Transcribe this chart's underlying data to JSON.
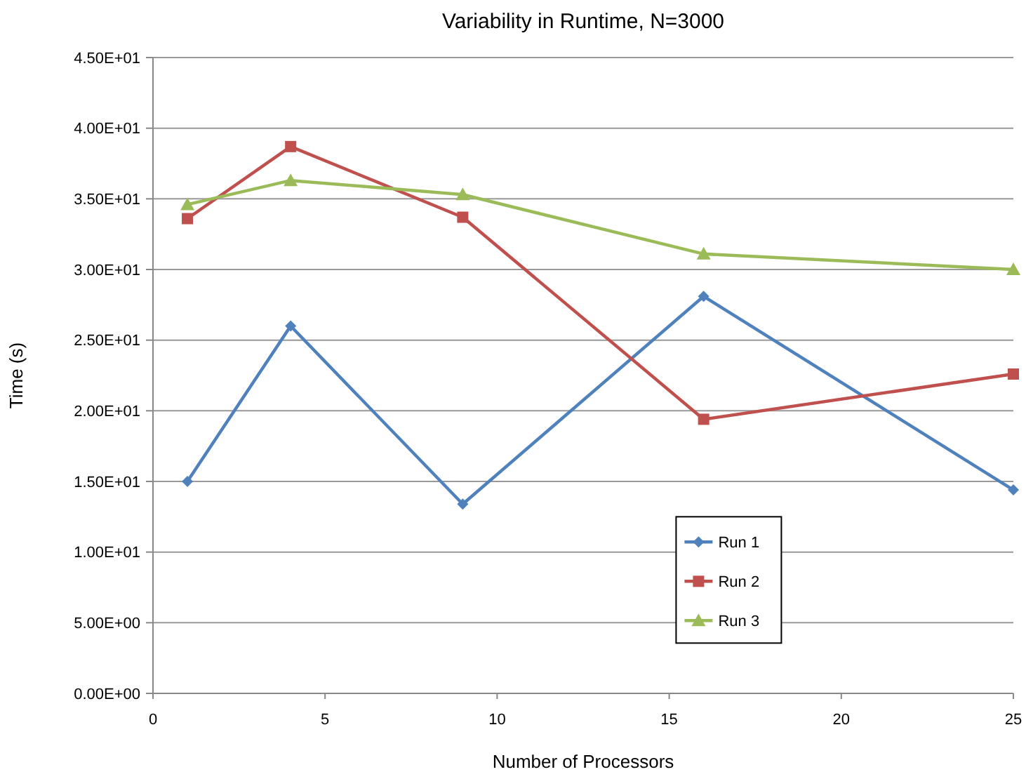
{
  "chart_data": {
    "type": "line",
    "title": "Variability in Runtime, N=3000",
    "xlabel": "Number of Processors",
    "ylabel": "Time (s)",
    "x": [
      1,
      4,
      9,
      16,
      25
    ],
    "series": [
      {
        "name": "Run 1",
        "color": "#4f81bd",
        "marker": "diamond",
        "values": [
          15.0,
          26.0,
          13.4,
          28.1,
          14.4
        ]
      },
      {
        "name": "Run 2",
        "color": "#c0504d",
        "marker": "square",
        "values": [
          33.6,
          38.7,
          33.7,
          19.4,
          22.6
        ]
      },
      {
        "name": "Run 3",
        "color": "#9bbb59",
        "marker": "triangle",
        "values": [
          34.6,
          36.3,
          35.3,
          31.1,
          30.0
        ]
      }
    ],
    "xlim": [
      0,
      25
    ],
    "xticks": [
      0,
      5,
      10,
      15,
      20,
      25
    ],
    "ylim": [
      0,
      45
    ],
    "yticks": [
      {
        "value": 0,
        "label": "0.00E+00"
      },
      {
        "value": 5,
        "label": "5.00E+00"
      },
      {
        "value": 10,
        "label": "1.00E+01"
      },
      {
        "value": 15,
        "label": "1.50E+01"
      },
      {
        "value": 20,
        "label": "2.00E+01"
      },
      {
        "value": 25,
        "label": "2.50E+01"
      },
      {
        "value": 30,
        "label": "3.00E+01"
      },
      {
        "value": 35,
        "label": "3.50E+01"
      },
      {
        "value": 40,
        "label": "4.00E+01"
      },
      {
        "value": 45,
        "label": "4.50E+01"
      }
    ],
    "grid": "y",
    "legend": "bottom right"
  }
}
